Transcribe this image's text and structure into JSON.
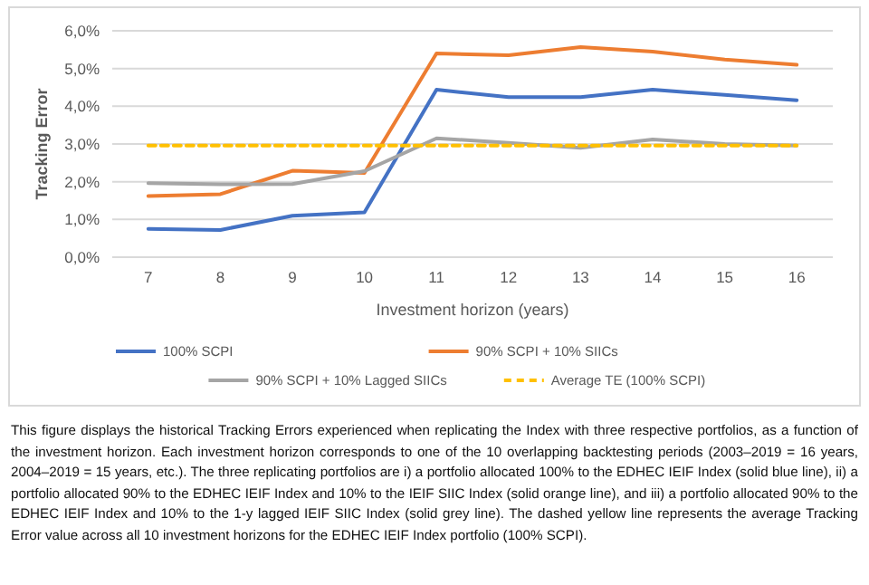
{
  "chart_data": {
    "type": "line",
    "ylabel": "Tracking Error",
    "xlabel": "Investment horizon (years)",
    "categories": [
      "7",
      "8",
      "9",
      "10",
      "11",
      "12",
      "13",
      "14",
      "15",
      "16"
    ],
    "ylim": [
      0,
      0.06
    ],
    "yticks": [
      {
        "value": 0,
        "label": "0,0%"
      },
      {
        "value": 0.01,
        "label": "1,0%"
      },
      {
        "value": 0.02,
        "label": "2,0%"
      },
      {
        "value": 0.03,
        "label": "3,0%"
      },
      {
        "value": 0.04,
        "label": "4,0%"
      },
      {
        "value": 0.05,
        "label": "5,0%"
      },
      {
        "value": 0.06,
        "label": "6,0%"
      }
    ],
    "grid": "y",
    "legend": "bottom",
    "marker": "none",
    "series": [
      {
        "name": "100% SCPI",
        "color": "#4472c4",
        "values": [
          0.0075,
          0.0072,
          0.011,
          0.0119,
          0.0444,
          0.0424,
          0.0424,
          0.0444,
          0.043,
          0.0416
        ]
      },
      {
        "name": "90% SCPI + 10% SIICs",
        "color": "#ed7d31",
        "values": [
          0.0162,
          0.0167,
          0.0229,
          0.0223,
          0.054,
          0.0535,
          0.0557,
          0.0545,
          0.0524,
          0.051
        ]
      },
      {
        "name": "90% SCPI + 10% Lagged SIICs",
        "color": "#a5a5a5",
        "values": [
          0.0196,
          0.0193,
          0.0194,
          0.0228,
          0.0315,
          0.0303,
          0.029,
          0.0312,
          0.03,
          0.0296
        ]
      },
      {
        "name": "Average TE (100% SCPI)",
        "color": "#ffc000",
        "line_style": "dashed",
        "values": [
          0.0296,
          0.0296,
          0.0296,
          0.0296,
          0.0296,
          0.0296,
          0.0296,
          0.0296,
          0.0296,
          0.0296
        ]
      }
    ],
    "annotations": [
      "This figure displays the historical Tracking Errors experienced when replicating the Index with three respective portfolios, as a function of the investment horizon. Each investment horizon corresponds to one of the 10 overlapping backtesting periods (2003–2019 = 16 years, 2004–2019 = 15 years, etc.). The three replicating portfolios are i) a portfolio allocated 100% to the EDHEC IEIF Index (solid blue line), ii) a portfolio allocated 90% to the EDHEC IEIF Index and 10% to the IEIF SIIC Index (solid orange line), and iii) a portfolio allocated 90% to the EDHEC IEIF Index and 10% to the 1-y lagged IEIF SIIC Index (solid grey line). The dashed yellow line represents the average Tracking Error value across all 10 investment horizons for the EDHEC IEIF Index portfolio (100% SCPI)."
    ]
  }
}
